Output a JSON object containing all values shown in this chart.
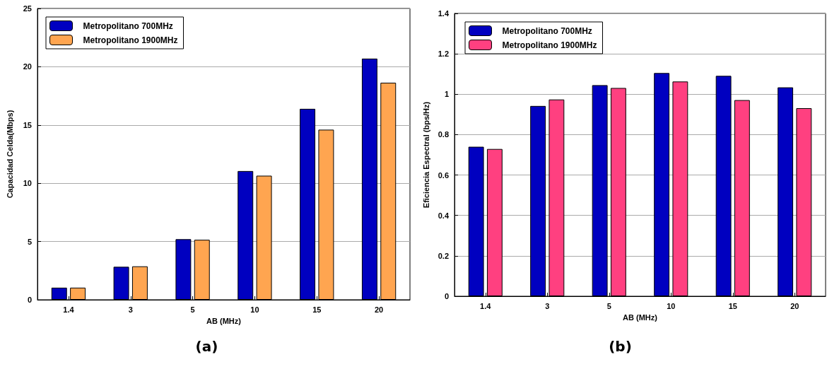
{
  "chart_data": [
    {
      "type": "bar",
      "categories": [
        "1.4",
        "3",
        "5",
        "10",
        "15",
        "20"
      ],
      "xlabel": "AB (MHz)",
      "ylabel": "Capacidad Celda(Mbps)",
      "series": [
        {
          "name": "Metropolitano 700MHz",
          "color": "#0000c0",
          "values": [
            1.04,
            2.83,
            5.2,
            11.05,
            16.39,
            20.7
          ]
        },
        {
          "name": "Metropolitano 1900MHz",
          "color": "#ffa550",
          "values": [
            1.04,
            2.87,
            5.15,
            10.65,
            14.6,
            18.63
          ]
        }
      ],
      "ylim": [
        0,
        25
      ],
      "yticks": [
        0,
        5,
        10,
        15,
        20,
        25
      ],
      "grid": "y",
      "legend": "top left",
      "annotations": [
        "(a)"
      ]
    },
    {
      "type": "bar",
      "categories": [
        "1.4",
        "3",
        "5",
        "10",
        "15",
        "20"
      ],
      "xlabel": "AB (MHz)",
      "ylabel": "Eficiencia Espectral (bps/Hz)",
      "series": [
        {
          "name": "Metropolitano 700MHz",
          "color": "#0000c0",
          "values": [
            0.74,
            0.942,
            1.045,
            1.105,
            1.091,
            1.034
          ]
        },
        {
          "name": "Metropolitano 1900MHz",
          "color": "#ff4080",
          "values": [
            0.729,
            0.974,
            1.031,
            1.063,
            0.971,
            0.931
          ]
        }
      ],
      "ylim": [
        0,
        1.4
      ],
      "yticks": [
        0,
        0.2,
        0.4,
        0.6,
        0.8,
        1,
        1.2,
        1.4
      ],
      "grid": "y",
      "legend": "top left",
      "annotations": [
        "(b)"
      ]
    }
  ]
}
